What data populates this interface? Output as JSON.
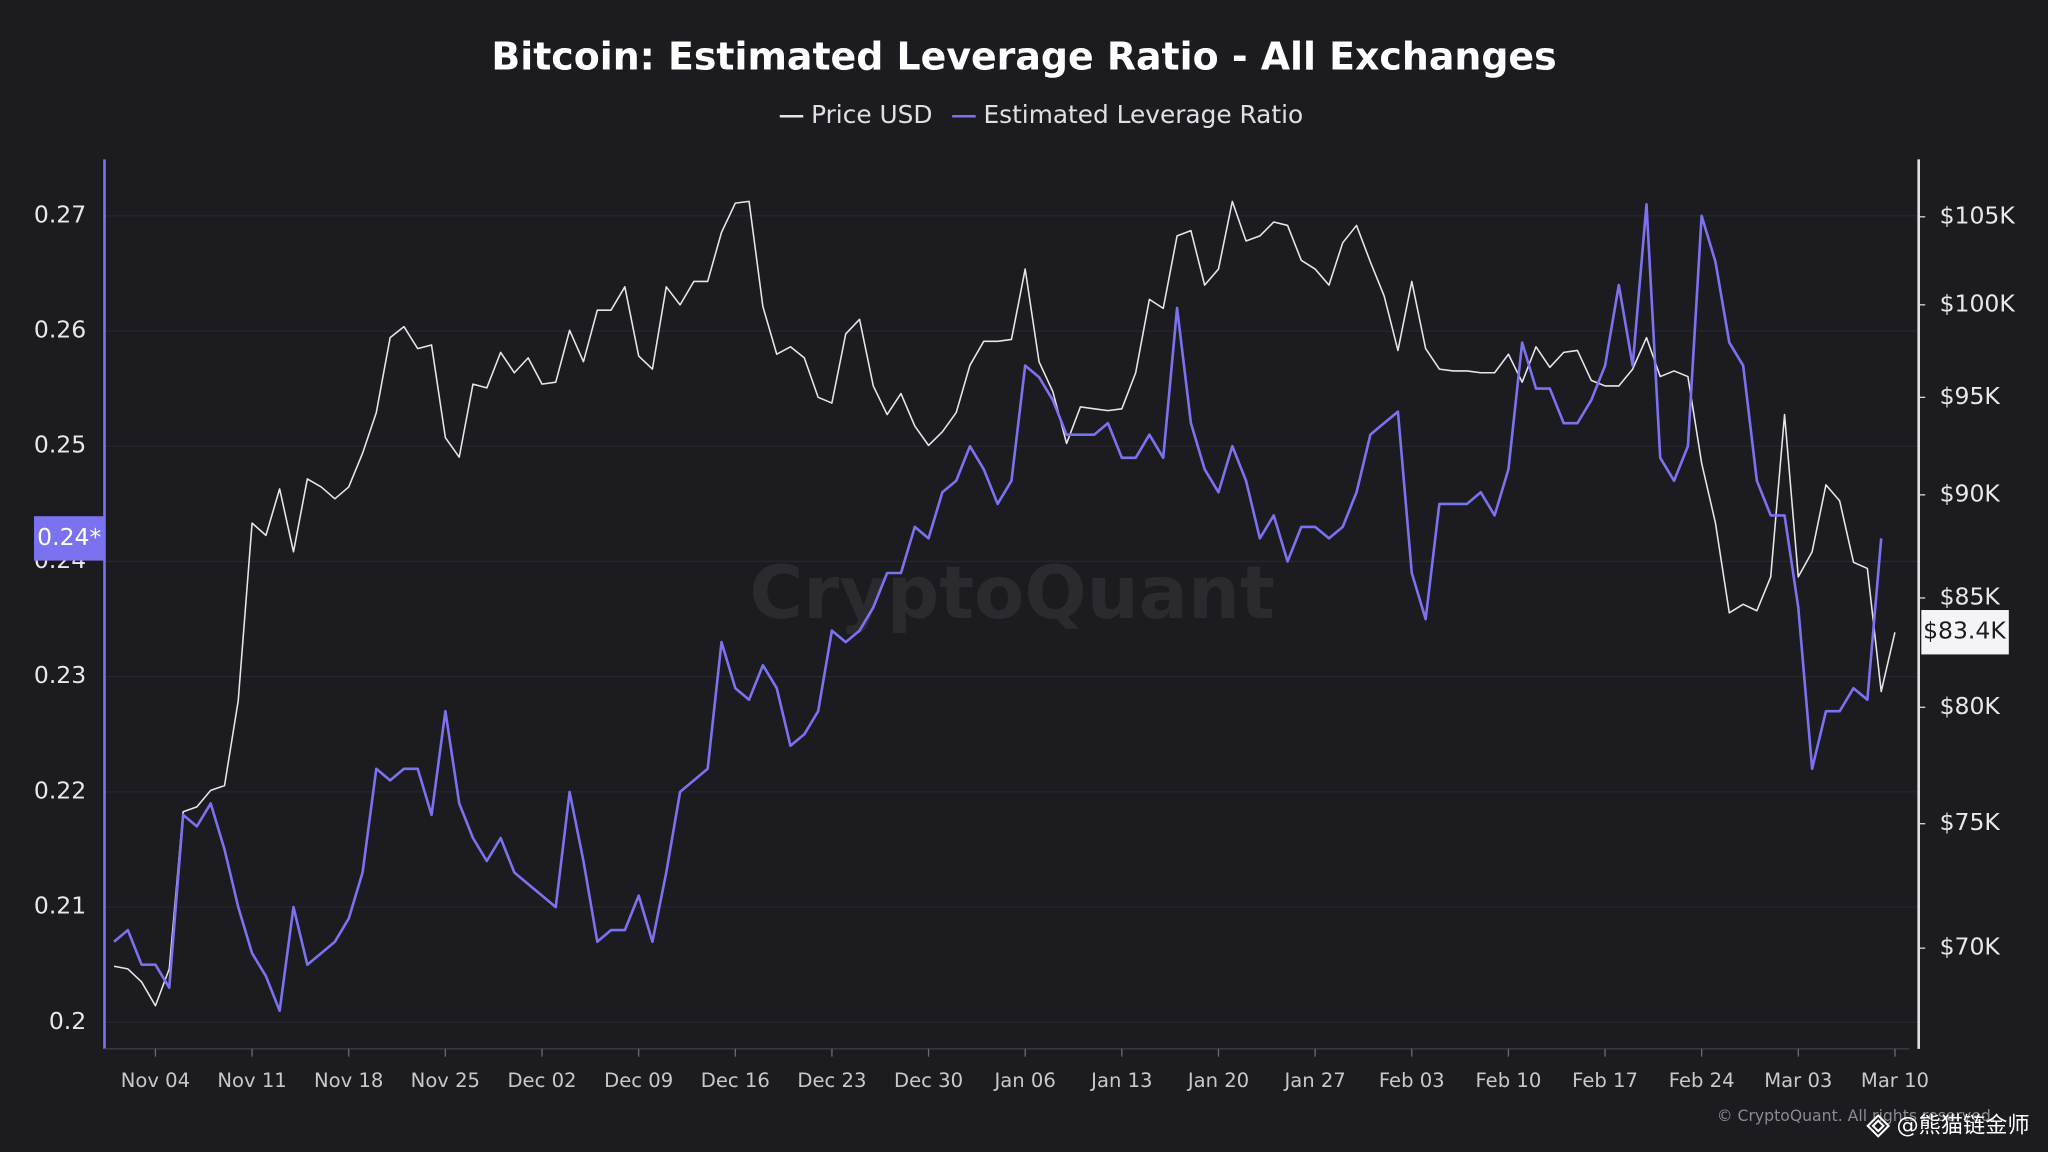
{
  "chart_data": {
    "type": "line",
    "title": "Bitcoin: Estimated Leverage Ratio - All Exchanges",
    "watermark": "CryptoQuant",
    "footer": "© CryptoQuant. All rights reserved.",
    "credit": "@熊猫链金师",
    "legend": "top",
    "grid": true,
    "y2_log": true,
    "categories": [
      null,
      null,
      null,
      "Nov 04",
      null,
      null,
      null,
      null,
      null,
      null,
      "Nov 11",
      null,
      null,
      null,
      null,
      null,
      null,
      "Nov 18",
      null,
      null,
      null,
      null,
      null,
      null,
      "Nov 25",
      null,
      null,
      null,
      null,
      null,
      null,
      "Dec 02",
      null,
      null,
      null,
      null,
      null,
      null,
      "Dec 09",
      null,
      null,
      null,
      null,
      null,
      null,
      "Dec 16",
      null,
      null,
      null,
      null,
      null,
      null,
      "Dec 23",
      null,
      null,
      null,
      null,
      null,
      null,
      "Dec 30",
      null,
      null,
      null,
      null,
      null,
      null,
      "Jan 06",
      null,
      null,
      null,
      null,
      null,
      null,
      "Jan 13",
      null,
      null,
      null,
      null,
      null,
      null,
      "Jan 20",
      null,
      null,
      null,
      null,
      null,
      null,
      "Jan 27",
      null,
      null,
      null,
      null,
      null,
      null,
      "Feb 03",
      null,
      null,
      null,
      null,
      null,
      null,
      "Feb 10",
      null,
      null,
      null,
      null,
      null,
      null,
      "Feb 17",
      null,
      null,
      null,
      null,
      null,
      null,
      "Feb 24",
      null,
      null,
      null,
      null,
      null,
      null,
      "Mar 03",
      null,
      null,
      null,
      null,
      null,
      null,
      "Mar 10"
    ],
    "series": [
      {
        "name": "Price USD",
        "color": "#e6e6ea",
        "axis": "y2",
        "last_label": "$83.4K",
        "values": [
          69300,
          69200,
          68700,
          67800,
          69200,
          75500,
          75700,
          76400,
          76600,
          80300,
          88600,
          88000,
          90300,
          87200,
          90800,
          90400,
          89800,
          90400,
          92100,
          94200,
          98200,
          98800,
          97600,
          97800,
          92900,
          91900,
          95700,
          95500,
          97400,
          96300,
          97100,
          95700,
          95800,
          98600,
          96900,
          99700,
          99700,
          101000,
          97200,
          96500,
          101000,
          100000,
          101300,
          101300,
          104100,
          105800,
          105900,
          99900,
          97300,
          97700,
          97100,
          95000,
          94700,
          98400,
          99200,
          95600,
          94100,
          95200,
          93500,
          92500,
          93200,
          94200,
          96700,
          98000,
          98000,
          98100,
          102000,
          96900,
          95300,
          92600,
          94500,
          94400,
          94300,
          94400,
          96300,
          100300,
          99800,
          103900,
          104200,
          101100,
          102000,
          105900,
          103600,
          103900,
          104700,
          104500,
          102500,
          102000,
          101100,
          103500,
          104500,
          102400,
          100500,
          97500,
          101300,
          97600,
          96500,
          96400,
          96400,
          96300,
          96300,
          97300,
          95800,
          97700,
          96600,
          97400,
          97500,
          95900,
          95600,
          95600,
          96500,
          98200,
          96100,
          96400,
          96100,
          91600,
          88600,
          84300,
          84700,
          84400,
          86000,
          94100,
          86000,
          87200,
          90500,
          89700,
          86700,
          86400,
          80700,
          83400
        ]
      },
      {
        "name": "Estimated Leverage Ratio",
        "color": "#7a72ee",
        "last_label": "0.24*",
        "values": [
          0.207,
          0.208,
          0.205,
          0.205,
          0.203,
          0.218,
          0.217,
          0.219,
          0.215,
          0.21,
          0.206,
          0.204,
          0.201,
          0.21,
          0.205,
          0.206,
          0.207,
          0.209,
          0.213,
          0.222,
          0.221,
          0.222,
          0.222,
          0.218,
          0.227,
          0.219,
          0.216,
          0.214,
          0.216,
          0.213,
          0.212,
          0.211,
          0.21,
          0.22,
          0.214,
          0.207,
          0.208,
          0.208,
          0.211,
          0.207,
          0.213,
          0.22,
          0.221,
          0.222,
          0.233,
          0.229,
          0.228,
          0.231,
          0.229,
          0.224,
          0.225,
          0.227,
          0.234,
          0.233,
          0.234,
          0.236,
          0.239,
          0.239,
          0.243,
          0.242,
          0.246,
          0.247,
          0.25,
          0.248,
          0.245,
          0.247,
          0.257,
          0.256,
          0.254,
          0.251,
          0.251,
          0.251,
          0.252,
          0.249,
          0.249,
          0.251,
          0.249,
          0.262,
          0.252,
          0.248,
          0.246,
          0.25,
          0.247,
          0.242,
          0.244,
          0.24,
          0.243,
          0.243,
          0.242,
          0.243,
          0.246,
          0.251,
          0.252,
          0.253,
          0.239,
          0.235,
          0.245,
          0.245,
          0.245,
          0.246,
          0.244,
          0.248,
          0.259,
          0.255,
          0.255,
          0.252,
          0.252,
          0.254,
          0.257,
          0.264,
          0.257,
          0.271,
          0.249,
          0.247,
          0.25,
          0.27,
          0.266,
          0.259,
          0.257,
          0.247,
          0.244,
          0.244,
          0.236,
          0.222,
          0.227,
          0.227,
          0.229,
          0.228,
          0.242,
          null
        ]
      }
    ],
    "ylim": [
      0.1977,
      0.2749
    ],
    "yticks": [
      0.2,
      0.21,
      0.22,
      0.23,
      0.24,
      0.25,
      0.26,
      0.27
    ],
    "y2lim": [
      66200,
      108400
    ],
    "y2ticks": [
      {
        "value": 70000,
        "label": "$70K"
      },
      {
        "value": 75000,
        "label": "$75K"
      },
      {
        "value": 80000,
        "label": "$80K"
      },
      {
        "value": 85000,
        "label": "$85K"
      },
      {
        "value": 90000,
        "label": "$90K"
      },
      {
        "value": 95000,
        "label": "$95K"
      },
      {
        "value": 100000,
        "label": "$100K"
      },
      {
        "value": 105000,
        "label": "$105K"
      }
    ]
  }
}
